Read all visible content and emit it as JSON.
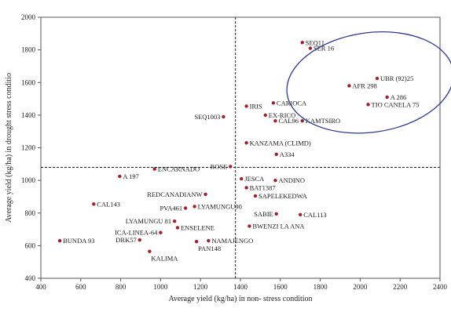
{
  "chart_data": {
    "type": "scatter",
    "title": "",
    "xlabel": "Average yield (kg/ha) in non- stress condition",
    "ylabel": "Average yield (kg/ha) in drought stress conditio",
    "xlim": [
      400,
      2400
    ],
    "ylim": [
      400,
      2000
    ],
    "xticks": [
      400,
      600,
      800,
      1000,
      1200,
      1400,
      1600,
      1800,
      2000,
      2200,
      2400
    ],
    "yticks": [
      400,
      600,
      800,
      1000,
      1200,
      1400,
      1600,
      1800,
      2000
    ],
    "grid": false,
    "marker_color": "#a0202b",
    "reference_lines": {
      "x": 1375,
      "y": 1080
    },
    "highlight_ellipse": {
      "cx": 2050,
      "cy": 1600,
      "rx": 420,
      "ry": 305,
      "color": "#2b3a8f"
    },
    "points": [
      {
        "label": "SEQ11",
        "x": 1710,
        "y": 1845
      },
      {
        "label": "SER 16",
        "x": 1750,
        "y": 1810
      },
      {
        "label": "UBR (92)25",
        "x": 2085,
        "y": 1625
      },
      {
        "label": "AFR 298",
        "x": 1945,
        "y": 1580
      },
      {
        "label": "A 286",
        "x": 2135,
        "y": 1510
      },
      {
        "label": "TIO CANELA 75",
        "x": 2040,
        "y": 1465
      },
      {
        "label": "CARIOCA",
        "x": 1565,
        "y": 1475
      },
      {
        "label": "IRIS",
        "x": 1430,
        "y": 1455
      },
      {
        "label": "EX-RICO",
        "x": 1525,
        "y": 1400
      },
      {
        "label": "SEQ1003",
        "x": 1315,
        "y": 1390
      },
      {
        "label": "CAL96",
        "x": 1575,
        "y": 1365
      },
      {
        "label": "KAMTSIRO",
        "x": 1710,
        "y": 1365
      },
      {
        "label": "KANZAMA (CLIMD)",
        "x": 1430,
        "y": 1230
      },
      {
        "label": "A334",
        "x": 1580,
        "y": 1160
      },
      {
        "label": "ROSE",
        "x": 1350,
        "y": 1085
      },
      {
        "label": "ENCARNADO",
        "x": 970,
        "y": 1070
      },
      {
        "label": "A 197",
        "x": 795,
        "y": 1025
      },
      {
        "label": "JESCA",
        "x": 1405,
        "y": 1010
      },
      {
        "label": "ANDINO",
        "x": 1575,
        "y": 1000
      },
      {
        "label": "BAT1387",
        "x": 1430,
        "y": 955
      },
      {
        "label": "REDCANADIANW",
        "x": 1225,
        "y": 915
      },
      {
        "label": "SAPELEKEDWA",
        "x": 1475,
        "y": 905
      },
      {
        "label": "CAL143",
        "x": 665,
        "y": 855
      },
      {
        "label": "PVA461",
        "x": 1125,
        "y": 830
      },
      {
        "label": "LYAMUNGU90",
        "x": 1170,
        "y": 840
      },
      {
        "label": "SABIE",
        "x": 1580,
        "y": 795
      },
      {
        "label": "CAL113",
        "x": 1700,
        "y": 790
      },
      {
        "label": "LYAMUNGU 81",
        "x": 1070,
        "y": 750
      },
      {
        "label": "ENSELENE",
        "x": 1085,
        "y": 710
      },
      {
        "label": "ICA-LINEA-64",
        "x": 1000,
        "y": 680
      },
      {
        "label": "BWENZI LA ANA",
        "x": 1445,
        "y": 720
      },
      {
        "label": "BUNDA 93",
        "x": 495,
        "y": 630
      },
      {
        "label": "DRK57",
        "x": 895,
        "y": 635
      },
      {
        "label": "NAMAJENGO",
        "x": 1240,
        "y": 630
      },
      {
        "label": "PAN148",
        "x": 1180,
        "y": 625
      },
      {
        "label": "KALIMA",
        "x": 945,
        "y": 565
      }
    ]
  }
}
